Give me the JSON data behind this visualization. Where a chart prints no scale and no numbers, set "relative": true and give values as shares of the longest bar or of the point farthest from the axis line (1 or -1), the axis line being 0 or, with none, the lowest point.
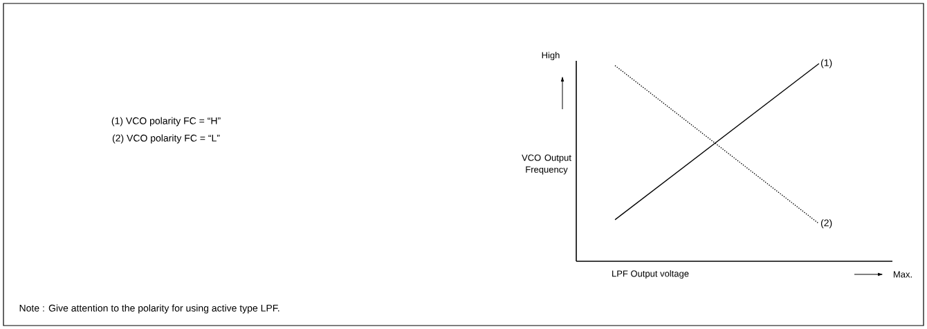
{
  "chart_data": {
    "type": "line",
    "relative": true,
    "categories": [
      null,
      null
    ],
    "xlabel": "LPF Output voltage",
    "ylabel": "VCO Output Frequency",
    "annotations": [
      "High",
      "Max.",
      "(1) VCO polarity FC = “H”",
      "(2) VCO polarity FC = “L”",
      "Note : Give attention to the polarity for using active type LPF."
    ],
    "series": [
      {
        "name": "(1)",
        "color": "#000000",
        "line_style": "solid",
        "values": [
          0.21,
          1
        ]
      },
      {
        "name": "(2)",
        "color": "#000000",
        "line_style": "dotted",
        "values": [
          0.99,
          0.19
        ]
      }
    ]
  }
}
